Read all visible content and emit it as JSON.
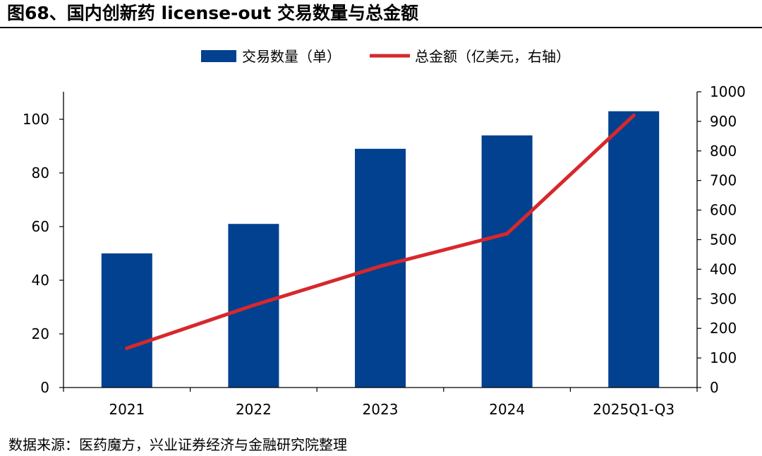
{
  "figure_title": "图68、国内创新药 license-out 交易数量与总金额",
  "source_note": "数据来源：医药魔方，兴业证券经济与金融研究院整理",
  "colors": {
    "bar": "#02418F",
    "line": "#D7282C",
    "axis": "#000000"
  },
  "chart_data": {
    "type": "bar+line",
    "title": "国内创新药 license-out 交易数量与总金额",
    "categories": [
      "2021",
      "2022",
      "2023",
      "2024",
      "2025Q1-Q3"
    ],
    "series": [
      {
        "name": "交易数量（单）",
        "type": "bar",
        "axis": "left",
        "values": [
          50,
          61,
          89,
          94,
          103
        ]
      },
      {
        "name": "总金额（亿美元，右轴）",
        "type": "line",
        "axis": "right",
        "values": [
          133,
          278,
          410,
          520,
          920
        ]
      }
    ],
    "y_left": {
      "min": 0,
      "max": 110,
      "ticks": [
        0,
        20,
        40,
        60,
        80,
        100
      ]
    },
    "y_right": {
      "min": 0,
      "max": 1000,
      "ticks": [
        0,
        100,
        200,
        300,
        400,
        500,
        600,
        700,
        800,
        900,
        1000
      ]
    },
    "legend_position": "top-center",
    "grid": false
  }
}
